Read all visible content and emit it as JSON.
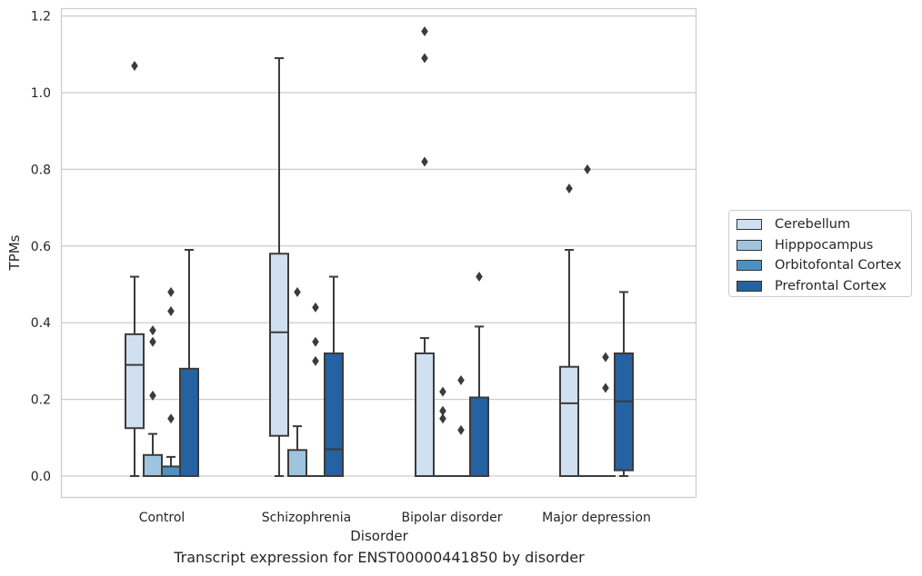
{
  "chart_data": {
    "type": "box",
    "title": "Transcript expression for ENST00000441850 by disorder",
    "xlabel": "Disorder",
    "ylabel": "TPMs",
    "ylim": [
      -0.057,
      1.222
    ],
    "yticks": [
      "0.0",
      "0.2",
      "0.4",
      "0.6",
      "0.8",
      "1.0",
      "1.2"
    ],
    "ytick_values": [
      0,
      0.2,
      0.4,
      0.6,
      0.8,
      1.0,
      1.2
    ],
    "grid": "horizontal",
    "legend_position": "right",
    "categories": [
      "Control",
      "Schizophrenia",
      "Bipolar disorder",
      "Major depression"
    ],
    "series": [
      {
        "name": "Cerebellum",
        "color": "#d0e0f0",
        "boxes": [
          {
            "q1": 0.125,
            "median": 0.29,
            "q3": 0.37,
            "whisker_low": 0.0,
            "whisker_high": 0.52,
            "outliers": [
              1.07
            ]
          },
          {
            "q1": 0.105,
            "median": 0.375,
            "q3": 0.58,
            "whisker_low": 0.0,
            "whisker_high": 1.09,
            "outliers": []
          },
          {
            "q1": 0.0,
            "median": 0.0,
            "q3": 0.32,
            "whisker_low": 0.0,
            "whisker_high": 0.36,
            "outliers": [
              0.82,
              1.09,
              1.16
            ]
          },
          {
            "q1": 0.0,
            "median": 0.19,
            "q3": 0.285,
            "whisker_low": 0.0,
            "whisker_high": 0.59,
            "outliers": [
              0.75
            ]
          }
        ]
      },
      {
        "name": "Hipppocampus",
        "color": "#9fc4de",
        "boxes": [
          {
            "q1": 0.0,
            "median": 0.0,
            "q3": 0.055,
            "whisker_low": 0.0,
            "whisker_high": 0.11,
            "outliers": [
              0.21,
              0.35,
              0.38
            ]
          },
          {
            "q1": 0.0,
            "median": 0.0,
            "q3": 0.068,
            "whisker_low": 0.0,
            "whisker_high": 0.13,
            "outliers": [
              0.48
            ]
          },
          {
            "q1": 0.0,
            "median": 0.0,
            "q3": 0.0,
            "whisker_low": 0.0,
            "whisker_high": 0.0,
            "outliers": [
              0.15,
              0.17,
              0.22
            ]
          },
          {
            "q1": 0.0,
            "median": 0.0,
            "q3": 0.0,
            "whisker_low": 0.0,
            "whisker_high": 0.0,
            "outliers": [
              0.8
            ]
          }
        ]
      },
      {
        "name": "Orbitofontal Cortex",
        "color": "#4f90c2",
        "boxes": [
          {
            "q1": 0.0,
            "median": 0.0,
            "q3": 0.025,
            "whisker_low": 0.0,
            "whisker_high": 0.05,
            "outliers": [
              0.15,
              0.43,
              0.48
            ]
          },
          {
            "q1": 0.0,
            "median": 0.0,
            "q3": 0.0,
            "whisker_low": 0.0,
            "whisker_high": 0.0,
            "outliers": [
              0.3,
              0.35,
              0.44
            ]
          },
          {
            "q1": 0.0,
            "median": 0.0,
            "q3": 0.0,
            "whisker_low": 0.0,
            "whisker_high": 0.0,
            "outliers": [
              0.12,
              0.25
            ]
          },
          {
            "q1": 0.0,
            "median": 0.0,
            "q3": 0.0,
            "whisker_low": 0.0,
            "whisker_high": 0.0,
            "outliers": [
              0.23,
              0.31
            ]
          }
        ]
      },
      {
        "name": "Prefrontal Cortex",
        "color": "#2462a2",
        "boxes": [
          {
            "q1": 0.0,
            "median": 0.0,
            "q3": 0.28,
            "whisker_low": 0.0,
            "whisker_high": 0.59,
            "outliers": []
          },
          {
            "q1": 0.0,
            "median": 0.07,
            "q3": 0.32,
            "whisker_low": 0.0,
            "whisker_high": 0.52,
            "outliers": []
          },
          {
            "q1": 0.0,
            "median": 0.0,
            "q3": 0.205,
            "whisker_low": 0.0,
            "whisker_high": 0.39,
            "outliers": [
              0.52
            ]
          },
          {
            "q1": 0.015,
            "median": 0.195,
            "q3": 0.32,
            "whisker_low": 0.0,
            "whisker_high": 0.48,
            "outliers": []
          }
        ]
      }
    ]
  }
}
